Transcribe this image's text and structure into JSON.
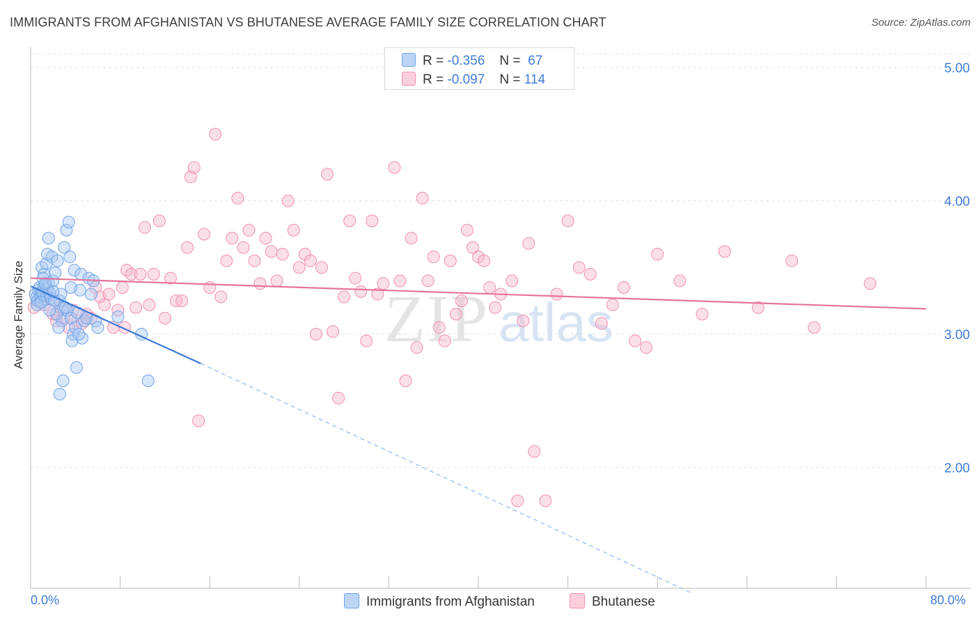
{
  "title": "IMMIGRANTS FROM AFGHANISTAN VS BHUTANESE AVERAGE FAMILY SIZE CORRELATION CHART",
  "source": "Source: ZipAtlas.com",
  "watermark": {
    "zip": "ZIP",
    "atlas": "atlas"
  },
  "legend": {
    "r_label": "R =",
    "n_label": "N =",
    "rows": [
      {
        "r": "-0.356",
        "n": "67",
        "color": "#a9c8f2"
      },
      {
        "r": "-0.097",
        "n": "114",
        "color": "#f7b8cb"
      }
    ]
  },
  "bottom_legend": [
    "Immigrants from Afghanistan",
    "Bhutanese"
  ],
  "chart_data": {
    "type": "scatter",
    "title": "IMMIGRANTS FROM AFGHANISTAN VS BHUTANESE AVERAGE FAMILY SIZE CORRELATION CHART",
    "xlabel": "",
    "ylabel": "Average Family Size",
    "xlim": [
      0,
      80
    ],
    "ylim": [
      1.0,
      5.1
    ],
    "x_tick_labels": [
      "0.0%",
      "80.0%"
    ],
    "y_ticks": [
      2.0,
      3.0,
      4.0,
      5.0
    ],
    "y_tick_labels": [
      "2.00",
      "3.00",
      "4.00",
      "5.00"
    ],
    "grid": true,
    "legend_position": "top-center",
    "series": [
      {
        "name": "Immigrants from Afghanistan",
        "color": "#6fa3e8",
        "r": -0.356,
        "n": 67,
        "trend": {
          "x0": 0,
          "y0": 3.36,
          "x1": 15.2,
          "y1": 2.78,
          "dash_to_x": 59,
          "dash_to_y": 1.06
        },
        "points": [
          [
            0.4,
            3.3
          ],
          [
            0.5,
            3.27
          ],
          [
            0.6,
            3.25
          ],
          [
            0.7,
            3.33
          ],
          [
            0.8,
            3.35
          ],
          [
            0.9,
            3.28
          ],
          [
            1.0,
            3.32
          ],
          [
            1.1,
            3.3
          ],
          [
            1.2,
            3.36
          ],
          [
            1.3,
            3.26
          ],
          [
            0.6,
            3.22
          ],
          [
            1.4,
            3.29
          ],
          [
            1.5,
            3.34
          ],
          [
            1.6,
            3.38
          ],
          [
            1.7,
            3.31
          ],
          [
            1.8,
            3.27
          ],
          [
            1.0,
            3.5
          ],
          [
            1.2,
            3.45
          ],
          [
            1.4,
            3.53
          ],
          [
            1.5,
            3.6
          ],
          [
            1.6,
            3.72
          ],
          [
            1.9,
            3.58
          ],
          [
            2.0,
            3.4
          ],
          [
            2.2,
            3.46
          ],
          [
            2.4,
            3.55
          ],
          [
            2.6,
            3.25
          ],
          [
            2.7,
            3.3
          ],
          [
            2.8,
            3.1
          ],
          [
            2.9,
            3.2
          ],
          [
            3.0,
            3.65
          ],
          [
            3.2,
            3.78
          ],
          [
            3.3,
            3.18
          ],
          [
            3.4,
            3.84
          ],
          [
            3.5,
            3.58
          ],
          [
            3.6,
            3.12
          ],
          [
            3.8,
            3.0
          ],
          [
            3.9,
            3.48
          ],
          [
            4.0,
            3.05
          ],
          [
            4.2,
            3.16
          ],
          [
            4.4,
            3.33
          ],
          [
            4.5,
            3.45
          ],
          [
            4.6,
            2.97
          ],
          [
            4.8,
            3.1
          ],
          [
            5.0,
            3.12
          ],
          [
            5.2,
            3.42
          ],
          [
            5.4,
            3.3
          ],
          [
            5.6,
            3.4
          ],
          [
            5.8,
            3.1
          ],
          [
            6.0,
            3.05
          ],
          [
            2.5,
            3.05
          ],
          [
            2.6,
            2.55
          ],
          [
            2.9,
            2.65
          ],
          [
            3.7,
            2.95
          ],
          [
            4.1,
            2.75
          ],
          [
            7.8,
            3.13
          ],
          [
            9.9,
            3.0
          ],
          [
            10.5,
            2.65
          ],
          [
            1.1,
            3.42
          ],
          [
            2.3,
            3.15
          ],
          [
            3.1,
            3.2
          ],
          [
            3.6,
            3.35
          ],
          [
            4.3,
            3.0
          ],
          [
            2.1,
            3.25
          ],
          [
            1.3,
            3.38
          ],
          [
            0.9,
            3.24
          ],
          [
            1.7,
            3.18
          ],
          [
            2.0,
            3.32
          ]
        ]
      },
      {
        "name": "Bhutanese",
        "color": "#f08fb0",
        "r": -0.097,
        "n": 114,
        "trend": {
          "x0": 0,
          "y0": 3.42,
          "x1": 80,
          "y1": 3.19
        },
        "points": [
          [
            0.3,
            3.2
          ],
          [
            0.6,
            3.25
          ],
          [
            0.9,
            3.3
          ],
          [
            1.2,
            3.22
          ],
          [
            1.5,
            3.28
          ],
          [
            2.0,
            3.15
          ],
          [
            2.3,
            3.1
          ],
          [
            2.6,
            3.2
          ],
          [
            3.0,
            3.12
          ],
          [
            3.4,
            3.05
          ],
          [
            3.8,
            3.18
          ],
          [
            4.2,
            3.1
          ],
          [
            4.6,
            3.08
          ],
          [
            5.0,
            3.15
          ],
          [
            5.4,
            3.12
          ],
          [
            5.8,
            3.35
          ],
          [
            6.2,
            3.28
          ],
          [
            6.6,
            3.22
          ],
          [
            7.0,
            3.3
          ],
          [
            7.4,
            3.05
          ],
          [
            7.8,
            3.18
          ],
          [
            8.2,
            3.35
          ],
          [
            8.4,
            3.05
          ],
          [
            8.6,
            3.48
          ],
          [
            9.0,
            3.45
          ],
          [
            9.4,
            3.2
          ],
          [
            9.8,
            3.45
          ],
          [
            10.2,
            3.8
          ],
          [
            10.6,
            3.22
          ],
          [
            11.0,
            3.45
          ],
          [
            11.5,
            3.85
          ],
          [
            12.0,
            3.12
          ],
          [
            12.5,
            3.42
          ],
          [
            13.0,
            3.25
          ],
          [
            13.5,
            3.25
          ],
          [
            14.0,
            3.65
          ],
          [
            14.3,
            4.18
          ],
          [
            14.6,
            4.25
          ],
          [
            15.0,
            2.35
          ],
          [
            15.5,
            3.75
          ],
          [
            16.0,
            3.35
          ],
          [
            16.5,
            4.5
          ],
          [
            17.0,
            3.28
          ],
          [
            17.5,
            3.55
          ],
          [
            18.0,
            3.72
          ],
          [
            18.5,
            4.02
          ],
          [
            19.0,
            3.65
          ],
          [
            19.5,
            3.78
          ],
          [
            20.0,
            3.55
          ],
          [
            20.5,
            3.38
          ],
          [
            21.0,
            3.72
          ],
          [
            21.5,
            3.62
          ],
          [
            22.0,
            3.4
          ],
          [
            22.5,
            3.6
          ],
          [
            23.0,
            4.0
          ],
          [
            23.5,
            3.78
          ],
          [
            24.0,
            3.5
          ],
          [
            24.5,
            3.6
          ],
          [
            25.0,
            3.55
          ],
          [
            25.5,
            3.0
          ],
          [
            26.0,
            3.5
          ],
          [
            26.5,
            4.2
          ],
          [
            27.0,
            3.02
          ],
          [
            27.5,
            2.52
          ],
          [
            28.0,
            3.28
          ],
          [
            28.5,
            3.85
          ],
          [
            29.0,
            3.42
          ],
          [
            29.5,
            3.32
          ],
          [
            30.0,
            2.95
          ],
          [
            30.5,
            3.85
          ],
          [
            31.0,
            3.3
          ],
          [
            31.5,
            3.38
          ],
          [
            32.5,
            4.25
          ],
          [
            33.0,
            3.4
          ],
          [
            33.5,
            2.65
          ],
          [
            34.0,
            3.72
          ],
          [
            34.5,
            2.9
          ],
          [
            35.0,
            4.02
          ],
          [
            35.5,
            3.4
          ],
          [
            36.0,
            3.58
          ],
          [
            36.5,
            3.05
          ],
          [
            37.0,
            2.95
          ],
          [
            37.5,
            3.55
          ],
          [
            38.0,
            3.15
          ],
          [
            38.5,
            3.25
          ],
          [
            39.0,
            3.78
          ],
          [
            39.5,
            3.65
          ],
          [
            40.0,
            3.58
          ],
          [
            40.5,
            3.55
          ],
          [
            41.0,
            3.35
          ],
          [
            41.5,
            3.2
          ],
          [
            42.0,
            3.3
          ],
          [
            43.0,
            3.4
          ],
          [
            43.5,
            1.75
          ],
          [
            44.0,
            3.1
          ],
          [
            44.5,
            3.68
          ],
          [
            45.0,
            2.12
          ],
          [
            46.0,
            1.75
          ],
          [
            47.0,
            3.3
          ],
          [
            48.0,
            3.85
          ],
          [
            49.0,
            3.5
          ],
          [
            50.0,
            3.45
          ],
          [
            51.0,
            3.08
          ],
          [
            52.0,
            3.22
          ],
          [
            53.0,
            3.35
          ],
          [
            54.0,
            2.95
          ],
          [
            55.0,
            2.9
          ],
          [
            56.0,
            3.6
          ],
          [
            58.0,
            3.4
          ],
          [
            60.0,
            3.15
          ],
          [
            62.0,
            3.62
          ],
          [
            65.0,
            3.2
          ],
          [
            68.0,
            3.55
          ],
          [
            70.0,
            3.05
          ],
          [
            75.0,
            3.38
          ]
        ]
      }
    ]
  }
}
